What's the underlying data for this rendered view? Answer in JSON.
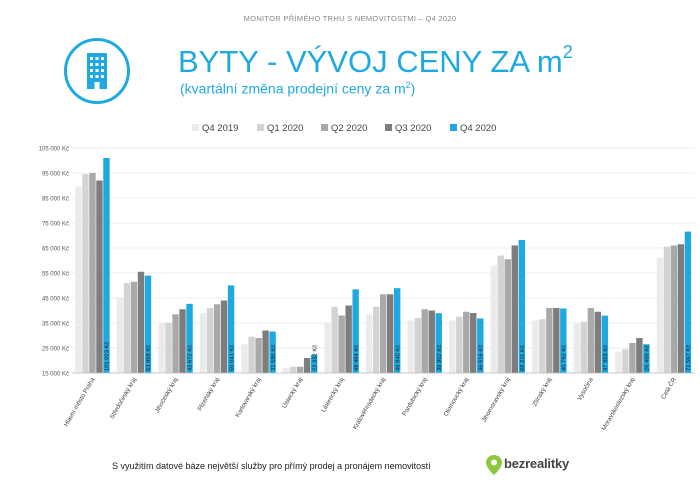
{
  "header": {
    "topline": "MONITOR PŘÍMÉHO TRHU S NEMOVITOSTMI – Q4 2020",
    "title_main": "BYTY - VÝVOJ CENY ZA m",
    "title_sup": "2",
    "subtitle_main": "(kvartální změna prodejní ceny za m",
    "subtitle_sup": "2",
    "subtitle_end": ")",
    "icon": "building-icon"
  },
  "footer": {
    "text": "S využitím datové báze největší služby pro přímý prodej a pronájem nemovitostí",
    "brand": "bezrealitky",
    "brand_icon": "location-pin-icon",
    "brand_color": "#8dc63f"
  },
  "chart_data": {
    "type": "bar",
    "title": "",
    "xlabel": "",
    "ylabel": "",
    "ylim": [
      15000,
      105000
    ],
    "yticks": [
      15000,
      25000,
      35000,
      45000,
      55000,
      65000,
      75000,
      85000,
      95000,
      105000
    ],
    "ytick_labels": [
      "15 000 Kč",
      "25 000 Kč",
      "35 000 Kč",
      "45 000 Kč",
      "55 000 Kč",
      "65 000 Kč",
      "75 000 Kč",
      "85 000 Kč",
      "95 000 Kč",
      "105 000 Kč"
    ],
    "grid": true,
    "legend_position": "top-center",
    "categories": [
      "Hlavní město Praha",
      "Středočeský kraj",
      "Jihočeský kraj",
      "Plzeňský kraj",
      "Karlovarský kraj",
      "Ústecký kraj",
      "Liberecký kraj",
      "Královéhradecký kraj",
      "Pardubický kraj",
      "Olomoucký kraj",
      "Jihomoravský kraj",
      "Zlínský kraj",
      "Vysočina",
      "Moravskoslezský kraj",
      "Celá ČR"
    ],
    "series": [
      {
        "name": "Q4 2019",
        "color": "#ebebeb",
        "values": [
          89500,
          45000,
          35000,
          39000,
          26500,
          17000,
          35000,
          38500,
          36000,
          36000,
          58000,
          36000,
          35000,
          23500,
          61000
        ]
      },
      {
        "name": "Q1 2020",
        "color": "#d3d3d3",
        "values": [
          94500,
          51000,
          35000,
          41000,
          29500,
          17500,
          41500,
          41500,
          37000,
          37500,
          62000,
          36500,
          35500,
          24500,
          65500
        ]
      },
      {
        "name": "Q2 2020",
        "color": "#a9a9a9",
        "values": [
          95000,
          51500,
          38500,
          42500,
          29000,
          17500,
          38000,
          46500,
          40500,
          39500,
          60500,
          41000,
          41000,
          27000,
          66000
        ]
      },
      {
        "name": "Q3 2020",
        "color": "#7d7d7d",
        "values": [
          92000,
          55500,
          40500,
          44000,
          32000,
          21000,
          42000,
          46500,
          40000,
          39000,
          66000,
          41000,
          39500,
          29000,
          66500
        ]
      },
      {
        "name": "Q4 2020",
        "color": "#1fa9e1",
        "values": [
          101023,
          53958,
          42672,
          50041,
          31596,
          22332,
          48464,
          48940,
          38902,
          36816,
          68211,
          40792,
          37959,
          26488,
          71567
        ]
      }
    ],
    "value_labels": [
      "101 023 Kč",
      "53 958 Kč",
      "42 672 Kč",
      "50 041 Kč",
      "31 596 Kč",
      "22 332 Kč",
      "48 464 Kč",
      "48 940 Kč",
      "38 902 Kč",
      "36 816 Kč",
      "68 211 Kč",
      "40 792 Kč",
      "37 959 Kč",
      "26 488 Kč",
      "71 567 Kč"
    ]
  }
}
